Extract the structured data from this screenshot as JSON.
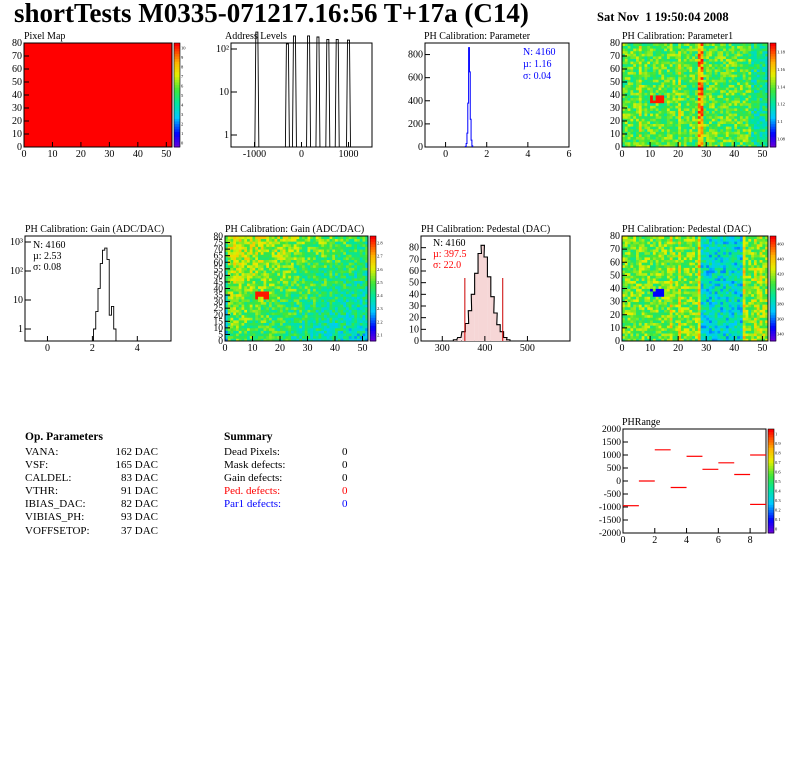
{
  "header": {
    "title": "shortTests M0335-071217.16:56 T+17a (C14)",
    "date": "Sat Nov  1 19:50:04 2008"
  },
  "colors": {
    "red": "#ff0000",
    "blue": "#0000ff",
    "black": "#000000",
    "hist_red": "#cc0000"
  },
  "chart_data": [
    {
      "id": "pixel_map",
      "type": "heatmap",
      "title": "Pixel Map",
      "xlim": [
        0,
        52
      ],
      "ylim": [
        0,
        80
      ],
      "xticks": [
        "0",
        "10",
        "20",
        "30",
        "40",
        "50"
      ],
      "yticks": [
        "0",
        "10",
        "20",
        "30",
        "40",
        "50",
        "60",
        "70",
        "80"
      ],
      "uniform_value": 10,
      "zlim": [
        0,
        10
      ],
      "zticks": [
        "0",
        "1",
        "2",
        "3",
        "4",
        "5",
        "6",
        "7",
        "8",
        "9",
        "10"
      ]
    },
    {
      "id": "address_levels",
      "type": "line",
      "title": "Address Levels",
      "log_y": true,
      "xlim": [
        -1500,
        1500
      ],
      "xticks": [
        "-1000",
        "0",
        "1000"
      ],
      "yticks_log": [
        "1",
        "10",
        "10²"
      ],
      "peaks": [
        {
          "x": -950,
          "y": 400
        },
        {
          "x": -300,
          "y": 200
        },
        {
          "x": -150,
          "y": 320
        },
        {
          "x": 150,
          "y": 320
        },
        {
          "x": 350,
          "y": 300
        },
        {
          "x": 560,
          "y": 260
        },
        {
          "x": 760,
          "y": 260
        },
        {
          "x": 1000,
          "y": 250
        }
      ]
    },
    {
      "id": "ph_param",
      "type": "line",
      "title": "PH Calibration: Parameter",
      "xlim": [
        -1,
        6
      ],
      "ylim": [
        0,
        900
      ],
      "xticks": [
        "0",
        "2",
        "4",
        "6"
      ],
      "yticks": [
        "0",
        "200",
        "400",
        "600",
        "800"
      ],
      "stats": {
        "n": "N: 4160",
        "mu": "µ: 1.16",
        "sigma": "σ: 0.04"
      },
      "bins": [
        [
          0.98,
          5
        ],
        [
          1.02,
          30
        ],
        [
          1.06,
          120
        ],
        [
          1.1,
          380
        ],
        [
          1.14,
          860
        ],
        [
          1.18,
          650
        ],
        [
          1.22,
          240
        ],
        [
          1.26,
          60
        ],
        [
          1.3,
          10
        ]
      ]
    },
    {
      "id": "ph_param1",
      "type": "heatmap",
      "title": "PH Calibration: Parameter1",
      "xlim": [
        0,
        52
      ],
      "ylim": [
        0,
        80
      ],
      "xticks": [
        "0",
        "10",
        "20",
        "30",
        "40",
        "50"
      ],
      "yticks": [
        "0",
        "10",
        "20",
        "30",
        "40",
        "50",
        "60",
        "70",
        "80"
      ],
      "zticks": [
        "1.08",
        "1.1",
        "1.12",
        "1.14",
        "1.16",
        "1.18"
      ]
    },
    {
      "id": "ph_gain",
      "type": "line",
      "title": "PH Calibration: Gain (ADC/DAC)",
      "log_y": true,
      "xlim": [
        -1,
        5.5
      ],
      "xticks": [
        "0",
        "2",
        "4"
      ],
      "yticks_log": [
        "1",
        "10",
        "10²",
        "10³"
      ],
      "stats": {
        "n": "N: 4160",
        "mu": "µ: 2.53",
        "sigma": "σ: 0.08"
      },
      "bins": [
        [
          2.1,
          1
        ],
        [
          2.2,
          4
        ],
        [
          2.3,
          25
        ],
        [
          2.4,
          180
        ],
        [
          2.5,
          520
        ],
        [
          2.6,
          620
        ],
        [
          2.7,
          250
        ],
        [
          2.8,
          3
        ],
        [
          2.9,
          6
        ],
        [
          3.0,
          1
        ]
      ]
    },
    {
      "id": "ph_gain_map",
      "type": "heatmap",
      "title": "PH Calibration: Gain (ADC/DAC)",
      "xlim": [
        0,
        52
      ],
      "ylim": [
        0,
        80
      ],
      "xticks": [
        "0",
        "10",
        "20",
        "30",
        "40",
        "50"
      ],
      "yticks": [
        "0",
        "5",
        "10",
        "15",
        "20",
        "25",
        "30",
        "35",
        "40",
        "45",
        "50",
        "55",
        "60",
        "65",
        "70",
        "75",
        "80"
      ],
      "zticks": [
        "2.1",
        "2.2",
        "2.3",
        "2.4",
        "2.5",
        "2.6",
        "2.7",
        "2.8"
      ]
    },
    {
      "id": "ph_pedestal",
      "type": "bar",
      "title": "PH Calibration: Pedestal (DAC)",
      "xlim": [
        250,
        600
      ],
      "ylim": [
        0,
        90
      ],
      "xticks": [
        "300",
        "400",
        "500"
      ],
      "yticks": [
        "0",
        "10",
        "20",
        "30",
        "40",
        "50",
        "60",
        "70",
        "80"
      ],
      "stats": {
        "n": "N: 4160",
        "mu": "µ: 397.5",
        "sigma": "σ: 22.0"
      },
      "cut_lines": [
        353,
        442
      ],
      "bins": [
        [
          330,
          1
        ],
        [
          340,
          3
        ],
        [
          350,
          8
        ],
        [
          358,
          15
        ],
        [
          365,
          26
        ],
        [
          372,
          40
        ],
        [
          380,
          58
        ],
        [
          388,
          75
        ],
        [
          395,
          82
        ],
        [
          402,
          72
        ],
        [
          410,
          55
        ],
        [
          418,
          38
        ],
        [
          425,
          24
        ],
        [
          432,
          14
        ],
        [
          440,
          8
        ],
        [
          448,
          3
        ],
        [
          455,
          1
        ]
      ]
    },
    {
      "id": "ph_pedestal_map",
      "type": "heatmap",
      "title": "PH Calibration: Pedestal (DAC)",
      "xlim": [
        0,
        52
      ],
      "ylim": [
        0,
        80
      ],
      "xticks": [
        "0",
        "10",
        "20",
        "30",
        "40",
        "50"
      ],
      "yticks": [
        "0",
        "10",
        "20",
        "30",
        "40",
        "50",
        "60",
        "70",
        "80"
      ],
      "zticks": [
        "340",
        "360",
        "380",
        "400",
        "420",
        "440",
        "460"
      ]
    },
    {
      "id": "ph_range",
      "type": "scatter",
      "title": "PHRange",
      "xlim": [
        0,
        9
      ],
      "ylim": [
        -2000,
        2000
      ],
      "xticks": [
        "0",
        "2",
        "4",
        "6",
        "8"
      ],
      "yticks": [
        "-2000",
        "-1500",
        "-1000",
        "-500",
        "0",
        "500",
        "1000",
        "1500",
        "2000"
      ],
      "zticks": [
        "0",
        "0.1",
        "0.2",
        "0.3",
        "0.4",
        "0.5",
        "0.6",
        "0.7",
        "0.8",
        "0.9",
        "1"
      ],
      "segments": [
        [
          0,
          -950
        ],
        [
          1,
          0
        ],
        [
          2,
          1200
        ],
        [
          3,
          -250
        ],
        [
          4,
          950
        ],
        [
          5,
          450
        ],
        [
          6,
          700
        ],
        [
          7,
          250
        ],
        [
          8,
          1000
        ],
        [
          8,
          -900
        ]
      ]
    }
  ],
  "op_parameters": {
    "heading": "Op. Parameters",
    "rows": [
      {
        "name": "VANA:",
        "value": "162 DAC"
      },
      {
        "name": "VSF:",
        "value": "165 DAC"
      },
      {
        "name": "CALDEL:",
        "value": "83 DAC"
      },
      {
        "name": "VTHR:",
        "value": "91 DAC"
      },
      {
        "name": "IBIAS_DAC:",
        "value": "82 DAC"
      },
      {
        "name": "VIBIAS_PH:",
        "value": "93 DAC"
      },
      {
        "name": "VOFFSETOP:",
        "value": "37 DAC"
      }
    ]
  },
  "summary": {
    "heading": "Summary",
    "rows": [
      {
        "name": "Dead Pixels:",
        "value": "0",
        "color": "#000000"
      },
      {
        "name": "Mask defects:",
        "value": "0",
        "color": "#000000"
      },
      {
        "name": "Gain defects:",
        "value": "0",
        "color": "#000000"
      },
      {
        "name": "Ped. defects:",
        "value": "0",
        "color": "#ff0000"
      },
      {
        "name": "Par1 defects:",
        "value": "0",
        "color": "#0000ff"
      }
    ]
  }
}
